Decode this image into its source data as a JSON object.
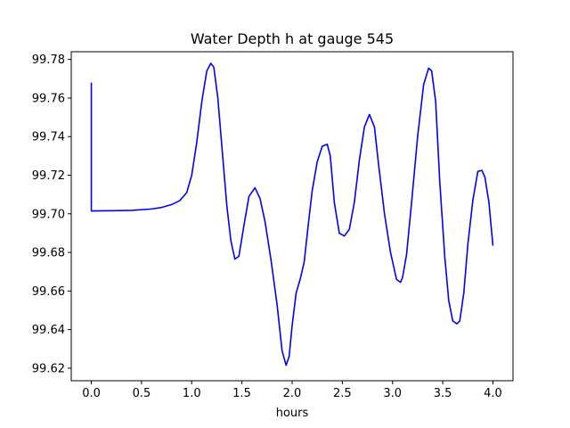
{
  "chart_data": {
    "type": "line",
    "title": "Water Depth h at gauge 545",
    "xlabel": "hours",
    "ylabel": "",
    "xlim": [
      -0.2,
      4.2
    ],
    "ylim": [
      99.6135,
      99.784
    ],
    "xticks": [
      0.0,
      0.5,
      1.0,
      1.5,
      2.0,
      2.5,
      3.0,
      3.5,
      4.0
    ],
    "xtick_labels": [
      "0.0",
      "0.5",
      "1.0",
      "1.5",
      "2.0",
      "2.5",
      "3.0",
      "3.5",
      "4.0"
    ],
    "yticks": [
      99.62,
      99.64,
      99.66,
      99.68,
      99.7,
      99.72,
      99.74,
      99.76,
      99.78
    ],
    "ytick_labels": [
      "99.62",
      "99.64",
      "99.66",
      "99.68",
      "99.70",
      "99.72",
      "99.74",
      "99.76",
      "99.78"
    ],
    "grid": false,
    "line_color": "#0000ff",
    "series": [
      {
        "x": [
          0.0,
          0.0,
          0.0,
          0.2,
          0.4,
          0.6,
          0.7,
          0.8,
          0.88,
          0.95,
          1.0,
          1.05,
          1.1,
          1.15,
          1.19,
          1.22,
          1.26,
          1.3,
          1.35,
          1.39,
          1.43,
          1.47,
          1.52,
          1.57,
          1.63,
          1.68,
          1.73,
          1.79,
          1.85,
          1.9,
          1.94,
          1.97,
          2.0,
          2.04,
          2.08,
          2.12,
          2.16,
          2.2,
          2.25,
          2.3,
          2.35,
          2.38,
          2.42,
          2.47,
          2.52,
          2.57,
          2.62,
          2.67,
          2.72,
          2.77,
          2.82,
          2.86,
          2.92,
          2.98,
          3.04,
          3.08,
          3.1,
          3.14,
          3.19,
          3.25,
          3.31,
          3.36,
          3.39,
          3.43,
          3.47,
          3.52,
          3.56,
          3.6,
          3.64,
          3.67,
          3.71,
          3.75,
          3.8,
          3.85,
          3.89,
          3.92,
          3.96,
          4.0
        ],
        "y": [
          99.768,
          99.704,
          99.7015,
          99.7016,
          99.7018,
          99.7025,
          99.7033,
          99.7048,
          99.7068,
          99.711,
          99.72,
          99.737,
          99.758,
          99.774,
          99.778,
          99.776,
          99.76,
          99.735,
          99.704,
          99.686,
          99.6765,
          99.678,
          99.694,
          99.709,
          99.7135,
          99.708,
          99.696,
          99.676,
          99.653,
          99.629,
          99.6215,
          99.626,
          99.642,
          99.659,
          99.666,
          99.675,
          99.694,
          99.712,
          99.727,
          99.735,
          99.736,
          99.73,
          99.706,
          99.69,
          99.6885,
          99.692,
          99.706,
          99.728,
          99.745,
          99.7515,
          99.745,
          99.726,
          99.7,
          99.68,
          99.666,
          99.6645,
          99.667,
          99.679,
          99.706,
          99.74,
          99.767,
          99.7755,
          99.774,
          99.758,
          99.717,
          99.678,
          99.655,
          99.6445,
          99.643,
          99.6445,
          99.659,
          99.684,
          99.707,
          99.722,
          99.7225,
          99.719,
          99.706,
          99.6835
        ]
      }
    ]
  }
}
